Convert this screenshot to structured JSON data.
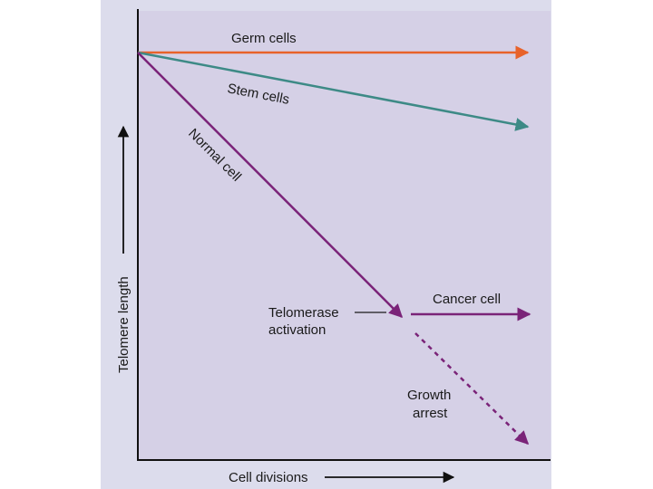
{
  "colors": {
    "outer_panel": "#dcdcec",
    "plot_area": "#d5d0e6",
    "axis": "#101010",
    "germ_line": "#e8622a",
    "stem_line": "#3d8a86",
    "normal_line": "#7a2378",
    "text": "#1a1a1a"
  },
  "axes": {
    "y_label": "Telomere length",
    "x_label": "Cell divisions"
  },
  "lines": {
    "germ": "Germ cells",
    "stem": "Stem cells",
    "normal": "Normal cell",
    "cancer": "Cancer cell",
    "growth_arrest_1": "Growth",
    "growth_arrest_2": "arrest"
  },
  "annotation": {
    "telomerase_1": "Telomerase",
    "telomerase_2": "activation"
  }
}
